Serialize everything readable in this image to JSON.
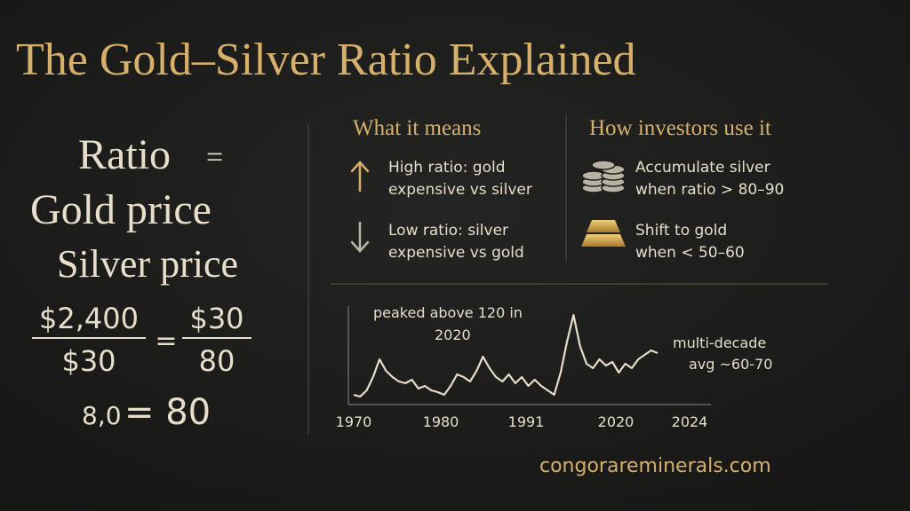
{
  "title": "The Gold–Silver Ratio Explained",
  "formula": {
    "ratio": "Ratio",
    "equals": "=",
    "numerator": "Gold price",
    "denominator": "Silver price",
    "example": {
      "gold": "$2,400",
      "silver": "$30",
      "equals": "=",
      "numerator": "$30",
      "denominator": "80",
      "result_left": "8,0",
      "result_right": "= 80"
    }
  },
  "meaning": {
    "heading": "What it means",
    "items": [
      {
        "line1": "High ratio: gold",
        "line2": "expensive vs silver"
      },
      {
        "line1": "Low ratio: silver",
        "line2": "expensive vs gold"
      }
    ]
  },
  "usage": {
    "heading": "How investors use it",
    "items": [
      {
        "line1": "Accumulate silver",
        "line2": "when ratio > 80–90"
      },
      {
        "line1": "Shift to gold",
        "line2": "when < 50–60"
      }
    ]
  },
  "chart_data": {
    "type": "line",
    "x_labels": [
      "1970",
      "1980",
      "1991",
      "2020",
      "2024"
    ],
    "values": [
      35,
      33,
      40,
      55,
      75,
      62,
      55,
      50,
      48,
      52,
      42,
      45,
      40,
      38,
      35,
      45,
      58,
      55,
      50,
      62,
      78,
      65,
      55,
      50,
      58,
      48,
      55,
      45,
      52,
      45,
      40,
      35,
      60,
      95,
      125,
      90,
      70,
      65,
      75,
      68,
      72,
      60,
      70,
      65,
      75,
      80,
      85,
      82
    ],
    "ylim": [
      20,
      140
    ],
    "color": "#e6decb",
    "annotations": {
      "peak_line1": "peaked above 120 in",
      "peak_line2": "2020",
      "avg_line1": "multi-decade",
      "avg_line2": "avg ~60-70"
    }
  },
  "footer": "congorareminerals.com"
}
